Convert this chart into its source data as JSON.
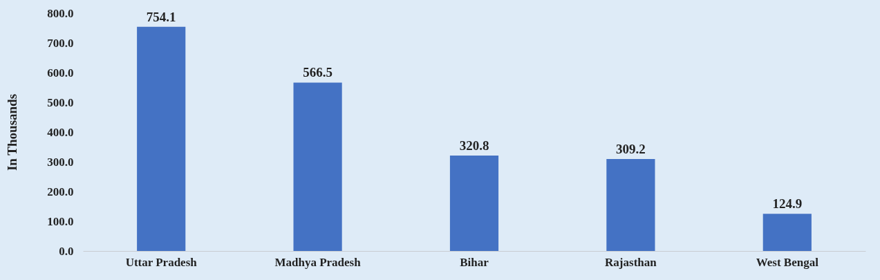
{
  "chart_data": {
    "type": "bar",
    "ylabel": "In Thousands",
    "categories": [
      "Uttar Pradesh",
      "Madhya Pradesh",
      "Bihar",
      "Rajasthan",
      "West Bengal"
    ],
    "values": [
      754.1,
      566.5,
      320.8,
      309.2,
      124.9
    ],
    "color": "#4472c4",
    "ylim": [
      0,
      800
    ],
    "yticks": [
      {
        "value": 0,
        "label": "0.0"
      },
      {
        "value": 100,
        "label": "100.0"
      },
      {
        "value": 200,
        "label": "200.0"
      },
      {
        "value": 300,
        "label": "300.0"
      },
      {
        "value": 400,
        "label": "400.0"
      },
      {
        "value": 500,
        "label": "500.0"
      },
      {
        "value": 600,
        "label": "600.0"
      },
      {
        "value": 700,
        "label": "700.0"
      },
      {
        "value": 800,
        "label": "800.0"
      }
    ],
    "grid": false,
    "data_labels": true
  }
}
